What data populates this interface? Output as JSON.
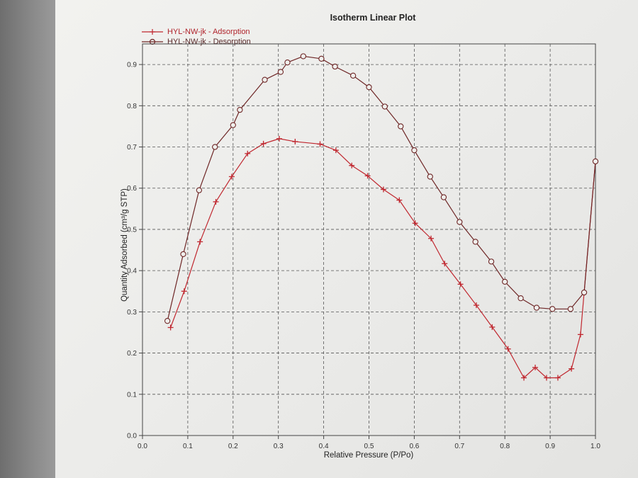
{
  "chart_data": {
    "type": "line",
    "title": "Isotherm Linear Plot",
    "xlabel": "Relative Pressure (P/Po)",
    "ylabel": "Quantity Adsorbed (cm³/g STP)",
    "xlim": [
      0.0,
      1.0
    ],
    "ylim": [
      0.0,
      0.95
    ],
    "xticks": [
      "0.0",
      "0.1",
      "0.2",
      "0.3",
      "0.4",
      "0.5",
      "0.6",
      "0.7",
      "0.8",
      "0.9",
      "1.0"
    ],
    "yticks": [
      "0.0",
      "0.1",
      "0.2",
      "0.3",
      "0.4",
      "0.5",
      "0.6",
      "0.7",
      "0.8",
      "0.9"
    ],
    "grid": true,
    "legend_position": "top-left",
    "series": [
      {
        "name": "HYL-NW-jk - Adsorption",
        "marker": "plus",
        "color": "#c0262e",
        "x": [
          0.062,
          0.092,
          0.127,
          0.162,
          0.197,
          0.232,
          0.267,
          0.302,
          0.337,
          0.392,
          0.427,
          0.462,
          0.497,
          0.532,
          0.567,
          0.602,
          0.637,
          0.667,
          0.702,
          0.737,
          0.772,
          0.807,
          0.842,
          0.867,
          0.892,
          0.917,
          0.947,
          0.967,
          1.0
        ],
        "y": [
          0.262,
          0.35,
          0.47,
          0.567,
          0.628,
          0.684,
          0.708,
          0.72,
          0.713,
          0.707,
          0.692,
          0.655,
          0.63,
          0.597,
          0.571,
          0.515,
          0.478,
          0.417,
          0.367,
          0.316,
          0.263,
          0.21,
          0.14,
          0.165,
          0.14,
          0.14,
          0.162,
          0.245,
          0.665
        ]
      },
      {
        "name": "HYL-NW-jk - Desorption",
        "marker": "circle",
        "color": "#6e2626",
        "x": [
          0.055,
          0.09,
          0.125,
          0.16,
          0.2,
          0.215,
          0.27,
          0.305,
          0.32,
          0.355,
          0.395,
          0.425,
          0.465,
          0.5,
          0.535,
          0.57,
          0.6,
          0.635,
          0.665,
          0.7,
          0.735,
          0.77,
          0.8,
          0.835,
          0.87,
          0.905,
          0.945,
          0.975,
          1.0
        ],
        "y": [
          0.278,
          0.44,
          0.595,
          0.7,
          0.753,
          0.79,
          0.863,
          0.882,
          0.905,
          0.92,
          0.914,
          0.895,
          0.873,
          0.845,
          0.798,
          0.75,
          0.692,
          0.628,
          0.578,
          0.518,
          0.47,
          0.422,
          0.373,
          0.333,
          0.31,
          0.307,
          0.307,
          0.347,
          0.665
        ]
      }
    ]
  }
}
